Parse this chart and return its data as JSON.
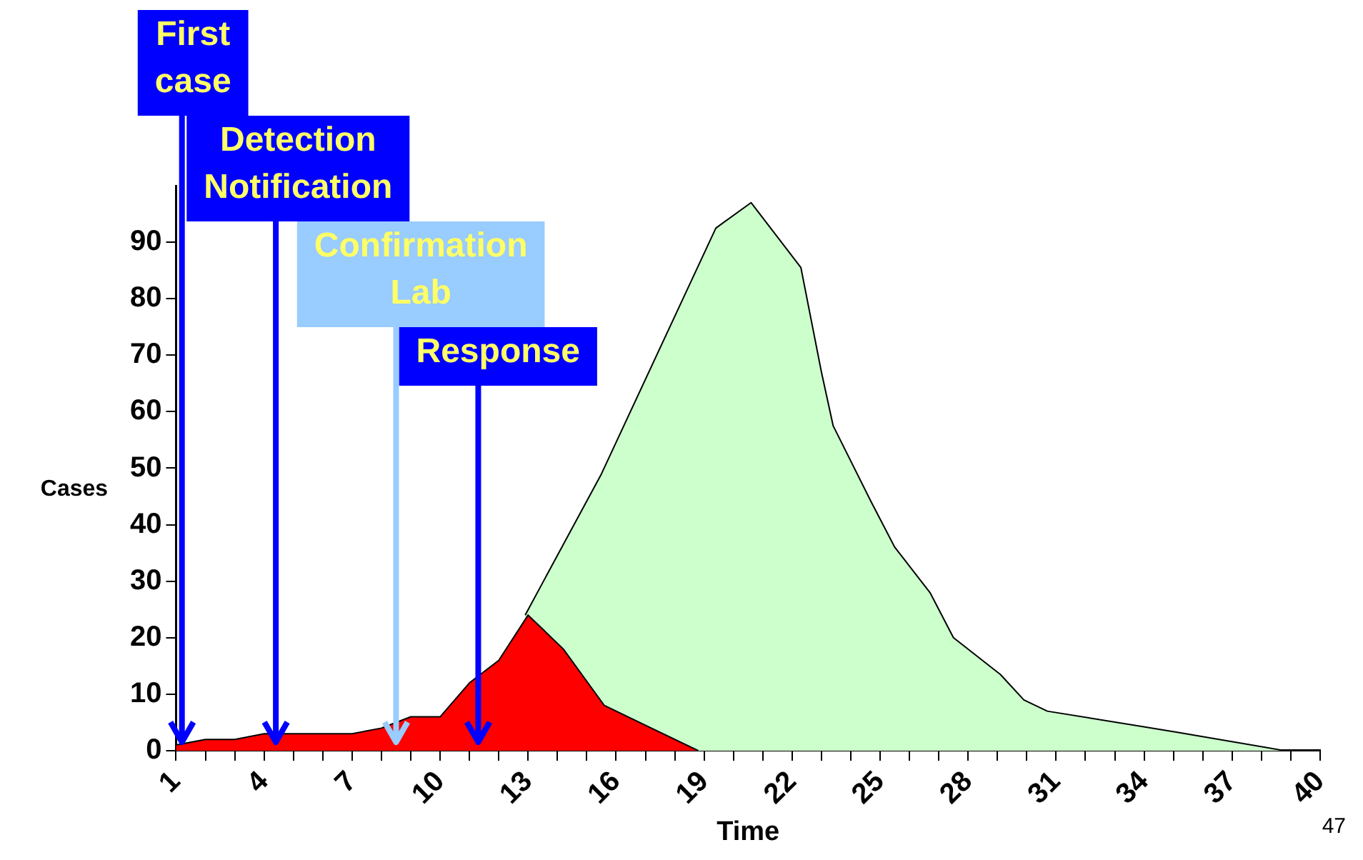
{
  "chart_data": {
    "type": "area",
    "xlabel": "Time",
    "ylabel": "Cases",
    "xlim": [
      1,
      40
    ],
    "xticks": [
      1,
      {
        "value": 2,
        "label": null
      },
      {
        "value": 3,
        "label": null
      },
      4,
      {
        "value": 5,
        "label": null
      },
      {
        "value": 6,
        "label": null
      },
      7,
      {
        "value": 8,
        "label": null
      },
      {
        "value": 9,
        "label": null
      },
      10,
      {
        "value": 11,
        "label": null
      },
      {
        "value": 12,
        "label": null
      },
      13,
      {
        "value": 14,
        "label": null
      },
      {
        "value": 15,
        "label": null
      },
      16,
      {
        "value": 17,
        "label": null
      },
      {
        "value": 18,
        "label": null
      },
      19,
      {
        "value": 20,
        "label": null
      },
      {
        "value": 21,
        "label": null
      },
      22,
      {
        "value": 23,
        "label": null
      },
      {
        "value": 24,
        "label": null
      },
      25,
      {
        "value": 26,
        "label": null
      },
      {
        "value": 27,
        "label": null
      },
      28,
      {
        "value": 29,
        "label": null
      },
      {
        "value": 30,
        "label": null
      },
      31,
      {
        "value": 32,
        "label": null
      },
      {
        "value": 33,
        "label": null
      },
      34,
      {
        "value": 35,
        "label": null
      },
      {
        "value": 36,
        "label": null
      },
      37,
      {
        "value": 38,
        "label": null
      },
      {
        "value": 39,
        "label": null
      },
      40
    ],
    "ylim": [
      0,
      100
    ],
    "yticks": [
      0,
      10,
      20,
      30,
      40,
      50,
      60,
      70,
      80,
      90
    ],
    "grid": false,
    "legend": false,
    "marker": "none",
    "series": [
      {
        "color": "#ff0000",
        "x": [
          1,
          2,
          3,
          4,
          7,
          8,
          9,
          10,
          11,
          12,
          13,
          14.2,
          15.6,
          18.8
        ],
        "values": [
          1,
          2,
          2,
          3,
          3,
          4,
          6,
          6,
          12,
          16,
          24,
          18,
          8,
          0
        ]
      },
      {
        "color": "#ccffcc",
        "x": [
          12.9,
          15.5,
          19.4,
          20.6,
          22.3,
          23,
          23.4,
          24.7,
          25.5,
          26.7,
          27.5,
          29.1,
          29.9,
          30.7,
          35.1,
          38.8
        ],
        "values": [
          24,
          49,
          92.5,
          97,
          85.5,
          67,
          57.5,
          44,
          36,
          28,
          20,
          13.5,
          9,
          7,
          3.3,
          0
        ]
      }
    ],
    "ref_lines": [
      {
        "axis": "x",
        "value": 1.2,
        "label": "First\ncase",
        "color": "#0000ff"
      },
      {
        "axis": "x",
        "value": 4.4,
        "label": "Detection\nNotification",
        "color": "#0000ff"
      },
      {
        "axis": "x",
        "value": 8.5,
        "label": "Confirmation\nLab",
        "color": "#99ccff"
      },
      {
        "axis": "x",
        "value": 11.3,
        "label": "Response",
        "color": "#0000ff"
      }
    ],
    "annotations": [
      "47"
    ]
  }
}
